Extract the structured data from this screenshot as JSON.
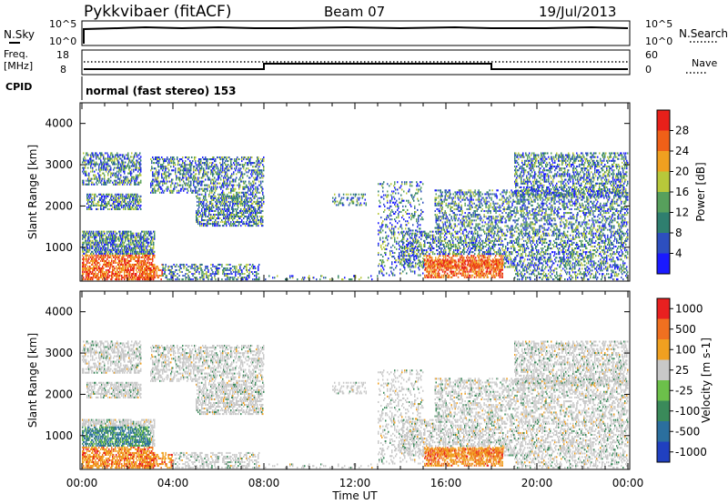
{
  "header": {
    "station": "Pykkvibaer (fitACF)",
    "beam": "Beam 07",
    "date": "19/Jul/2013"
  },
  "noise_panel": {
    "left_label": "N.Sky",
    "right_label": "N.Search",
    "left_ticks": [
      "10^5",
      "10^0"
    ],
    "right_ticks": [
      "10^5",
      "10^0"
    ]
  },
  "freq_panel": {
    "left_label_1": "Freq.",
    "left_label_2": "[MHz]",
    "right_label": "Nave",
    "left_ticks": [
      "18",
      "8"
    ],
    "right_ticks": [
      "60",
      "0"
    ]
  },
  "cpid_panel": {
    "label": "CPID",
    "text": "normal (fast stereo) 153"
  },
  "x_axis": {
    "label": "Time UT",
    "ticks": [
      "00:00",
      "04:00",
      "08:00",
      "12:00",
      "16:00",
      "20:00",
      "00:00"
    ]
  },
  "chart_data": [
    {
      "type": "heatmap",
      "ylabel": "Slant Range [km]",
      "yticks": [
        "1000",
        "2000",
        "3000",
        "4000"
      ],
      "ylim": [
        180,
        4500
      ],
      "xlim_hours": [
        0,
        24
      ],
      "colorbar": {
        "label": "Power [dB]",
        "ticks": [
          "4",
          "8",
          "12",
          "16",
          "20",
          "24",
          "28"
        ],
        "colors": [
          "#1a1aff",
          "#2d4fbf",
          "#2f7f6f",
          "#57a05c",
          "#b8c83a",
          "#f0a020",
          "#f06018",
          "#e8201a"
        ]
      }
    },
    {
      "type": "heatmap",
      "ylabel": "Slant Range [km]",
      "yticks": [
        "1000",
        "2000",
        "3000",
        "4000"
      ],
      "ylim": [
        180,
        4500
      ],
      "xlim_hours": [
        0,
        24
      ],
      "colorbar": {
        "label": "Velocity [m s-1]",
        "ticks": [
          "1000",
          "500",
          "100",
          "25",
          "-25",
          "-100",
          "-500",
          "-1000"
        ],
        "colors": [
          "#2040c0",
          "#2b6f9e",
          "#3a8a5a",
          "#6cc04a",
          "#c8c8c8",
          "#f0a020",
          "#f07020",
          "#e82020"
        ]
      }
    }
  ]
}
